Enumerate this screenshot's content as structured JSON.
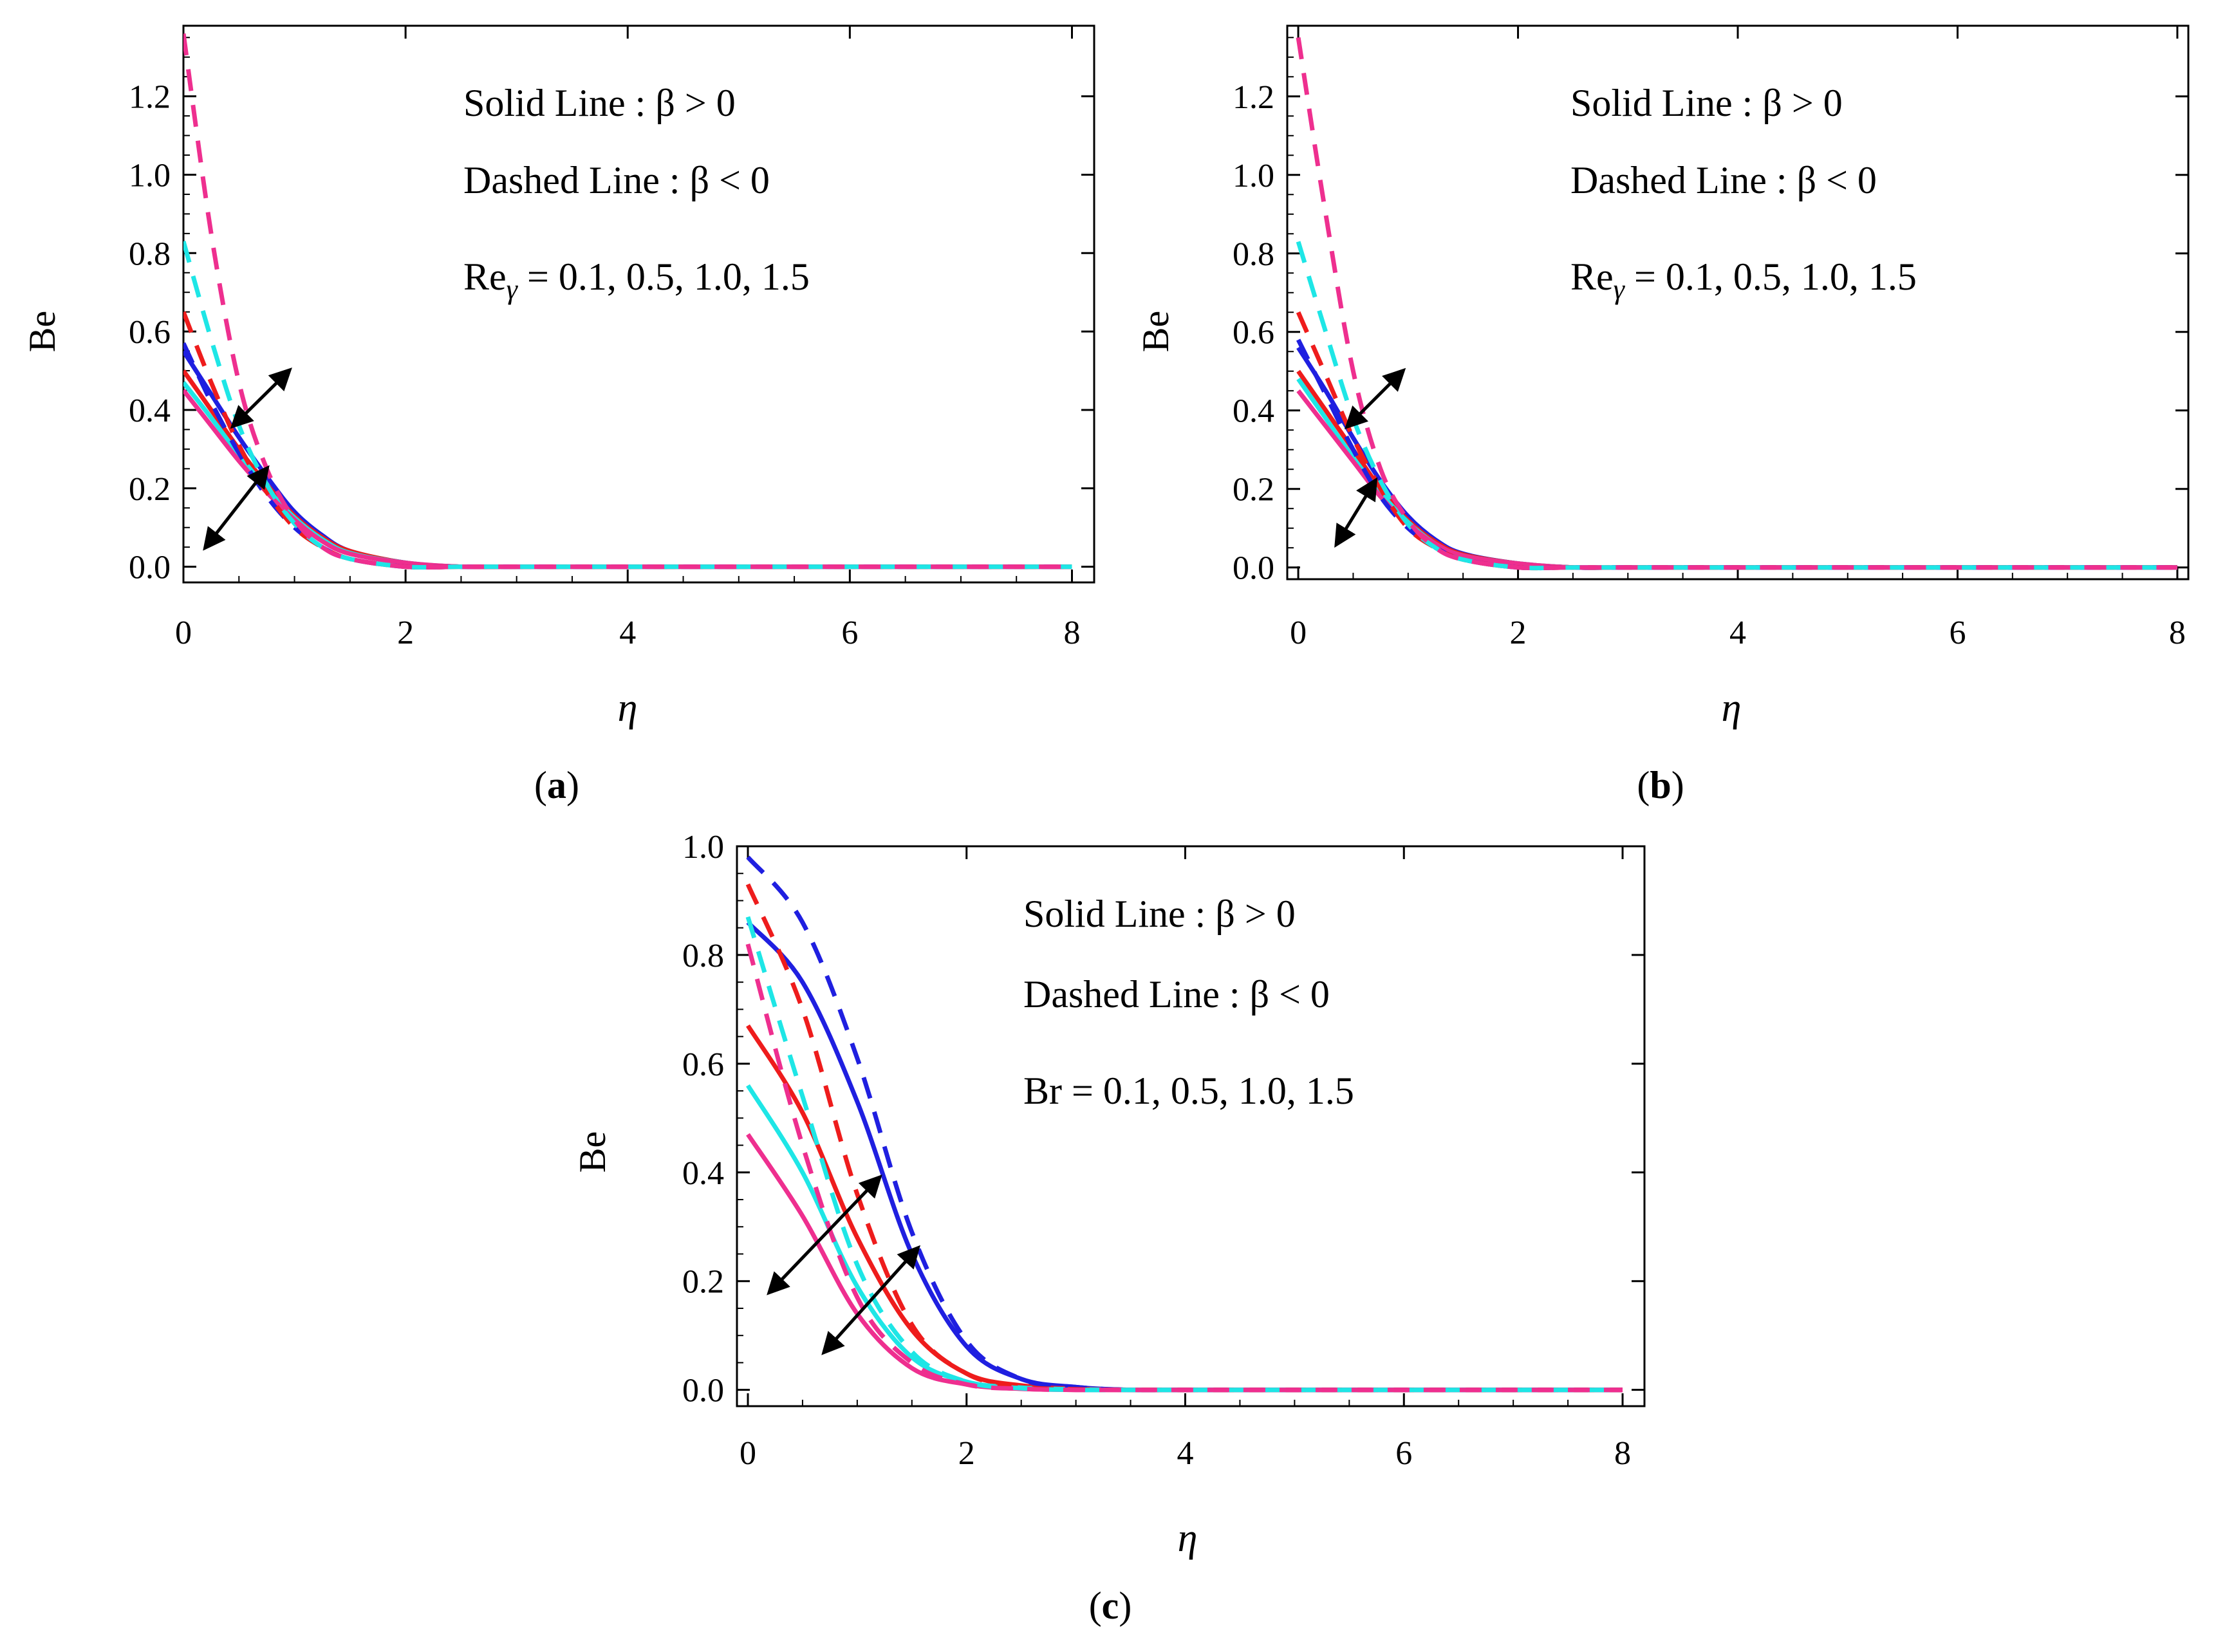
{
  "figure": {
    "colors": {
      "blue": "#1f1fe0",
      "red": "#ee1c1c",
      "cyan": "#1ee6e6",
      "magenta": "#ee2f8f",
      "frame": "#000000"
    }
  },
  "chart_data": [
    {
      "type": "line",
      "panel": "(a)",
      "panel_letter": "a",
      "xlabel": "η",
      "ylabel": "Be",
      "xlim": [
        0,
        8.2
      ],
      "ylim": [
        -0.04,
        1.38
      ],
      "xticks": [
        0,
        2,
        4,
        6,
        8
      ],
      "xtick_labels": [
        "0",
        "2",
        "4",
        "6",
        "8"
      ],
      "yticks": [
        0.0,
        0.2,
        0.4,
        0.6,
        0.8,
        1.0,
        1.2
      ],
      "ytick_labels": [
        "0.0",
        "0.2",
        "0.4",
        "0.6",
        "0.8",
        "1.0",
        "1.2"
      ],
      "annotation_line1": "Solid Line : β > 0",
      "annotation_line2": "Dashed Line : β < 0",
      "annotation_param_name": "Re",
      "annotation_param_sub": "γ",
      "annotation_param_values": " =  0.1,  0.5,  1.0,  1.5",
      "x": [
        0,
        0.25,
        0.5,
        0.75,
        1.0,
        1.25,
        1.5,
        2.0,
        2.5,
        3.0,
        4.0,
        6.0,
        8.0
      ],
      "series": [
        {
          "name": "Re_γ = 0.1 (β > 0)",
          "style": "solid",
          "color": "blue",
          "values": [
            0.55,
            0.44,
            0.33,
            0.23,
            0.14,
            0.08,
            0.04,
            0.01,
            0.0,
            0.0,
            0.0,
            0.0,
            0.0
          ]
        },
        {
          "name": "Re_γ = 0.5 (β > 0)",
          "style": "solid",
          "color": "red",
          "values": [
            0.5,
            0.4,
            0.3,
            0.21,
            0.13,
            0.075,
            0.04,
            0.01,
            0.0,
            0.0,
            0.0,
            0.0,
            0.0
          ]
        },
        {
          "name": "Re_γ = 1.0 (β > 0)",
          "style": "solid",
          "color": "cyan",
          "values": [
            0.47,
            0.38,
            0.285,
            0.2,
            0.125,
            0.07,
            0.035,
            0.01,
            0.0,
            0.0,
            0.0,
            0.0,
            0.0
          ]
        },
        {
          "name": "Re_γ = 1.5 (β > 0)",
          "style": "solid",
          "color": "magenta",
          "values": [
            0.45,
            0.36,
            0.27,
            0.19,
            0.12,
            0.065,
            0.033,
            0.01,
            0.0,
            0.0,
            0.0,
            0.0,
            0.0
          ]
        },
        {
          "name": "Re_γ = 0.1 (β < 0)",
          "style": "dashed",
          "color": "blue",
          "values": [
            0.57,
            0.42,
            0.29,
            0.18,
            0.1,
            0.05,
            0.02,
            0.0,
            0.0,
            0.0,
            0.0,
            0.0,
            0.0
          ]
        },
        {
          "name": "Re_γ = 0.5 (β < 0)",
          "style": "dashed",
          "color": "red",
          "values": [
            0.65,
            0.47,
            0.31,
            0.19,
            0.1,
            0.05,
            0.02,
            0.0,
            0.0,
            0.0,
            0.0,
            0.0,
            0.0
          ]
        },
        {
          "name": "Re_γ = 1.0 (β < 0)",
          "style": "dashed",
          "color": "cyan",
          "values": [
            0.83,
            0.58,
            0.36,
            0.21,
            0.11,
            0.05,
            0.02,
            0.0,
            0.0,
            0.0,
            0.0,
            0.0,
            0.0
          ]
        },
        {
          "name": "Re_γ = 1.5 (β < 0)",
          "style": "dashed",
          "color": "magenta",
          "values": [
            1.36,
            0.85,
            0.47,
            0.25,
            0.12,
            0.05,
            0.02,
            0.0,
            0.0,
            0.0,
            0.0,
            0.0,
            0.0
          ]
        }
      ],
      "arrows": [
        {
          "from": [
            0.45,
            0.36
          ],
          "to": [
            0.95,
            0.5
          ]
        },
        {
          "from": [
            0.75,
            0.25
          ],
          "to": [
            0.2,
            0.05
          ]
        }
      ]
    },
    {
      "type": "line",
      "panel": "(b)",
      "panel_letter": "b",
      "xlabel": "η",
      "ylabel": "Be",
      "xlim": [
        -0.1,
        8.1
      ],
      "ylim": [
        -0.03,
        1.38
      ],
      "xticks": [
        0,
        2,
        4,
        6,
        8
      ],
      "xtick_labels": [
        "0",
        "2",
        "4",
        "6",
        "8"
      ],
      "yticks": [
        0.0,
        0.2,
        0.4,
        0.6,
        0.8,
        1.0,
        1.2
      ],
      "ytick_labels": [
        "0.0",
        "0.2",
        "0.4",
        "0.6",
        "0.8",
        "1.0",
        "1.2"
      ],
      "annotation_line1": "Solid Line : β > 0",
      "annotation_line2": "Dashed Line : β < 0",
      "annotation_param_name": "Re",
      "annotation_param_sub": "γ",
      "annotation_param_values": " =  0.1,  0.5,  1.0,  1.5",
      "x": [
        0,
        0.25,
        0.5,
        0.75,
        1.0,
        1.25,
        1.5,
        2.0,
        2.5,
        3.0,
        4.0,
        6.0,
        8.0
      ],
      "series": [
        {
          "name": "Re_γ = 0.1 (β > 0)",
          "style": "solid",
          "color": "blue",
          "values": [
            0.56,
            0.45,
            0.33,
            0.22,
            0.13,
            0.07,
            0.035,
            0.01,
            0.0,
            0.0,
            0.0,
            0.0,
            0.0
          ]
        },
        {
          "name": "Re_γ = 0.5 (β > 0)",
          "style": "solid",
          "color": "red",
          "values": [
            0.5,
            0.4,
            0.3,
            0.2,
            0.12,
            0.065,
            0.033,
            0.01,
            0.0,
            0.0,
            0.0,
            0.0,
            0.0
          ]
        },
        {
          "name": "Re_γ = 1.0 (β > 0)",
          "style": "solid",
          "color": "cyan",
          "values": [
            0.48,
            0.38,
            0.28,
            0.19,
            0.115,
            0.06,
            0.03,
            0.01,
            0.0,
            0.0,
            0.0,
            0.0,
            0.0
          ]
        },
        {
          "name": "Re_γ = 1.5 (β > 0)",
          "style": "solid",
          "color": "magenta",
          "values": [
            0.45,
            0.36,
            0.27,
            0.18,
            0.11,
            0.06,
            0.03,
            0.01,
            0.0,
            0.0,
            0.0,
            0.0,
            0.0
          ]
        },
        {
          "name": "Re_γ = 0.1 (β < 0)",
          "style": "dashed",
          "color": "blue",
          "values": [
            0.58,
            0.44,
            0.3,
            0.18,
            0.1,
            0.05,
            0.02,
            0.0,
            0.0,
            0.0,
            0.0,
            0.0,
            0.0
          ]
        },
        {
          "name": "Re_γ = 0.5 (β < 0)",
          "style": "dashed",
          "color": "red",
          "values": [
            0.65,
            0.49,
            0.33,
            0.2,
            0.1,
            0.05,
            0.02,
            0.0,
            0.0,
            0.0,
            0.0,
            0.0,
            0.0
          ]
        },
        {
          "name": "Re_γ = 1.0 (β < 0)",
          "style": "dashed",
          "color": "cyan",
          "values": [
            0.83,
            0.6,
            0.38,
            0.22,
            0.11,
            0.05,
            0.02,
            0.0,
            0.0,
            0.0,
            0.0,
            0.0,
            0.0
          ]
        },
        {
          "name": "Re_γ = 1.5 (β < 0)",
          "style": "dashed",
          "color": "magenta",
          "values": [
            1.35,
            0.9,
            0.5,
            0.25,
            0.12,
            0.05,
            0.02,
            0.0,
            0.0,
            0.0,
            0.0,
            0.0,
            0.0
          ]
        }
      ],
      "arrows": [
        {
          "from": [
            0.45,
            0.36
          ],
          "to": [
            0.95,
            0.5
          ]
        },
        {
          "from": [
            0.7,
            0.22
          ],
          "to": [
            0.35,
            0.06
          ]
        }
      ]
    },
    {
      "type": "line",
      "panel": "(c)",
      "panel_letter": "c",
      "xlabel": "η",
      "ylabel": "Be",
      "xlim": [
        -0.1,
        8.2
      ],
      "ylim": [
        -0.03,
        1.0
      ],
      "xticks": [
        0,
        2,
        4,
        6,
        8
      ],
      "xtick_labels": [
        "0",
        "2",
        "4",
        "6",
        "8"
      ],
      "yticks": [
        0.0,
        0.2,
        0.4,
        0.6,
        0.8,
        1.0
      ],
      "ytick_labels": [
        "0.0",
        "0.2",
        "0.4",
        "0.6",
        "0.8",
        "1.0"
      ],
      "annotation_line1": "Solid Line : β > 0",
      "annotation_line2": "Dashed Line : β < 0",
      "annotation_param_name": "Br",
      "annotation_param_sub": "",
      "annotation_param_values": " = 0.1, 0.5, 1.0, 1.5",
      "x": [
        0,
        0.5,
        1.0,
        1.5,
        2.0,
        2.5,
        3.0,
        3.5,
        4.0,
        5.0,
        6.0,
        7.0,
        8.0
      ],
      "series": [
        {
          "name": "Br = 0.1 (β > 0)",
          "style": "solid",
          "color": "blue",
          "values": [
            0.86,
            0.75,
            0.53,
            0.25,
            0.08,
            0.02,
            0.005,
            0.0,
            0.0,
            0.0,
            0.0,
            0.0,
            0.0
          ]
        },
        {
          "name": "Br = 0.5 (β > 0)",
          "style": "solid",
          "color": "red",
          "values": [
            0.67,
            0.51,
            0.28,
            0.11,
            0.03,
            0.008,
            0.002,
            0.0,
            0.0,
            0.0,
            0.0,
            0.0,
            0.0
          ]
        },
        {
          "name": "Br = 1.0 (β > 0)",
          "style": "solid",
          "color": "cyan",
          "values": [
            0.56,
            0.4,
            0.19,
            0.06,
            0.015,
            0.004,
            0.001,
            0.0,
            0.0,
            0.0,
            0.0,
            0.0,
            0.0
          ]
        },
        {
          "name": "Br = 1.5 (β > 0)",
          "style": "solid",
          "color": "magenta",
          "values": [
            0.47,
            0.32,
            0.14,
            0.04,
            0.01,
            0.002,
            0.0,
            0.0,
            0.0,
            0.0,
            0.0,
            0.0,
            0.0
          ]
        },
        {
          "name": "Br = 0.1 (β < 0)",
          "style": "dashed",
          "color": "blue",
          "values": [
            0.98,
            0.86,
            0.61,
            0.29,
            0.09,
            0.02,
            0.005,
            0.0,
            0.0,
            0.0,
            0.0,
            0.0,
            0.0
          ]
        },
        {
          "name": "Br = 0.5 (β < 0)",
          "style": "dashed",
          "color": "red",
          "values": [
            0.93,
            0.7,
            0.36,
            0.12,
            0.03,
            0.006,
            0.001,
            0.0,
            0.0,
            0.0,
            0.0,
            0.0,
            0.0
          ]
        },
        {
          "name": "Br = 1.0 (β < 0)",
          "style": "dashed",
          "color": "cyan",
          "values": [
            0.87,
            0.54,
            0.23,
            0.07,
            0.015,
            0.003,
            0.0,
            0.0,
            0.0,
            0.0,
            0.0,
            0.0,
            0.0
          ]
        },
        {
          "name": "Br = 1.5 (β < 0)",
          "style": "dashed",
          "color": "magenta",
          "values": [
            0.82,
            0.45,
            0.17,
            0.05,
            0.01,
            0.002,
            0.0,
            0.0,
            0.0,
            0.0,
            0.0,
            0.0,
            0.0
          ]
        }
      ],
      "arrows": [
        {
          "from": [
            1.2,
            0.39
          ],
          "to": [
            0.2,
            0.18
          ]
        },
        {
          "from": [
            1.55,
            0.26
          ],
          "to": [
            0.7,
            0.07
          ]
        }
      ]
    }
  ]
}
